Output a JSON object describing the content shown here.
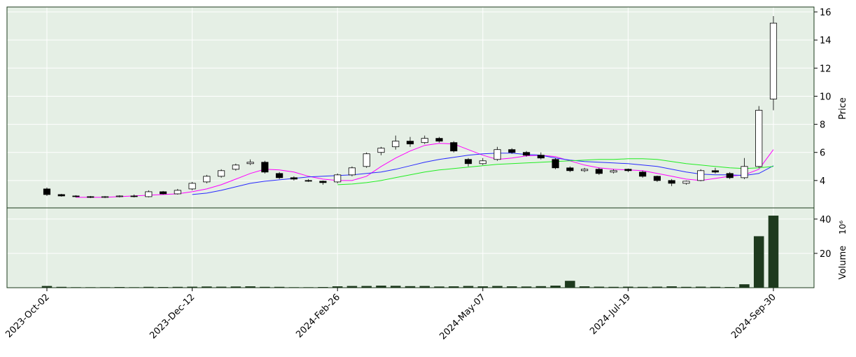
{
  "chart_data": {
    "type": "candlestick",
    "ylabel": "Price",
    "volume_label": "Volume",
    "volume_scale_label": "10⁶",
    "categories": [
      "2023-Oct-02",
      null,
      null,
      null,
      null,
      null,
      null,
      null,
      null,
      null,
      "2023-Dec-12",
      null,
      null,
      null,
      null,
      null,
      null,
      null,
      null,
      null,
      "2024-Feb-26",
      null,
      null,
      null,
      null,
      null,
      null,
      null,
      null,
      null,
      "2024-May-07",
      null,
      null,
      null,
      null,
      null,
      null,
      null,
      null,
      null,
      "2024-Jul-19",
      null,
      null,
      null,
      null,
      null,
      null,
      null,
      null,
      null,
      "2024-Sep-30"
    ],
    "open": [
      3.4,
      3.0,
      2.9,
      2.85,
      2.8,
      2.85,
      2.9,
      2.85,
      3.2,
      3.05,
      3.4,
      3.9,
      4.3,
      4.8,
      5.2,
      5.3,
      4.5,
      4.2,
      4.0,
      3.95,
      3.9,
      4.4,
      5.0,
      6.0,
      6.4,
      6.8,
      6.7,
      7.0,
      6.7,
      5.5,
      5.2,
      5.5,
      6.2,
      6.0,
      5.8,
      5.5,
      4.9,
      4.7,
      4.8,
      4.6,
      4.8,
      4.6,
      4.3,
      4.0,
      3.8,
      4.0,
      4.7,
      4.5,
      4.2,
      5.0,
      9.8
    ],
    "high": [
      3.5,
      3.05,
      2.95,
      2.9,
      2.9,
      2.95,
      3.0,
      3.3,
      3.25,
      3.4,
      3.9,
      4.4,
      4.8,
      5.2,
      5.5,
      5.4,
      4.6,
      4.3,
      4.1,
      4.0,
      4.5,
      5.0,
      6.0,
      6.4,
      7.2,
      7.1,
      7.2,
      7.1,
      6.8,
      5.6,
      5.6,
      6.4,
      6.3,
      6.1,
      6.0,
      5.6,
      5.0,
      4.9,
      4.9,
      4.8,
      4.85,
      4.7,
      4.35,
      4.1,
      4.0,
      4.8,
      4.9,
      4.6,
      5.6,
      9.3,
      15.7
    ],
    "low": [
      2.9,
      2.85,
      2.8,
      2.75,
      2.75,
      2.8,
      2.8,
      2.8,
      3.0,
      3.0,
      3.3,
      3.8,
      4.2,
      4.7,
      5.1,
      4.5,
      4.1,
      4.0,
      3.9,
      3.7,
      3.8,
      4.3,
      4.9,
      5.8,
      6.2,
      6.4,
      6.6,
      6.7,
      6.0,
      5.0,
      5.1,
      5.4,
      5.9,
      5.7,
      5.5,
      4.8,
      4.6,
      4.6,
      4.4,
      4.5,
      4.6,
      4.2,
      3.9,
      3.6,
      3.7,
      3.95,
      4.5,
      4.1,
      4.1,
      4.9,
      9.0
    ],
    "close": [
      3.0,
      2.9,
      2.85,
      2.8,
      2.85,
      2.9,
      2.85,
      3.2,
      3.05,
      3.3,
      3.8,
      4.3,
      4.7,
      5.1,
      5.3,
      4.6,
      4.2,
      4.1,
      3.95,
      3.85,
      4.4,
      4.9,
      5.9,
      6.3,
      6.8,
      6.6,
      7.0,
      6.8,
      6.1,
      5.2,
      5.4,
      6.2,
      6.0,
      5.8,
      5.6,
      4.9,
      4.7,
      4.8,
      4.5,
      4.7,
      4.7,
      4.3,
      4.0,
      3.8,
      3.95,
      4.7,
      4.6,
      4.2,
      5.0,
      9.0,
      15.2
    ],
    "volume": [
      1,
      0.5,
      0.3,
      0.3,
      0.3,
      0.4,
      0.3,
      0.5,
      0.4,
      0.5,
      0.6,
      0.7,
      0.6,
      0.7,
      0.8,
      0.5,
      0.5,
      0.3,
      0.3,
      0.4,
      0.8,
      1.0,
      1.0,
      1.2,
      1.1,
      0.9,
      1.0,
      0.7,
      0.8,
      1.0,
      0.8,
      1.0,
      0.8,
      0.7,
      0.9,
      1.2,
      4.0,
      0.8,
      0.6,
      0.5,
      0.6,
      0.5,
      0.6,
      0.8,
      0.5,
      0.6,
      0.5,
      0.4,
      2.0,
      30,
      42
    ],
    "volume_color": "#1e3a1e",
    "moving_averages": [
      {
        "color": "#ff00ff",
        "values": [
          null,
          null,
          2.8,
          2.8,
          2.8,
          2.85,
          2.9,
          2.95,
          3.0,
          3.05,
          3.2,
          3.4,
          3.7,
          4.1,
          4.5,
          4.8,
          4.75,
          4.6,
          4.3,
          4.1,
          4.0,
          4.0,
          4.3,
          5.0,
          5.6,
          6.1,
          6.5,
          6.65,
          6.6,
          6.2,
          5.8,
          5.5,
          5.6,
          5.75,
          5.8,
          5.7,
          5.4,
          5.1,
          4.9,
          4.8,
          4.75,
          4.7,
          4.5,
          4.3,
          4.1,
          4.0,
          4.15,
          4.3,
          4.4,
          4.8,
          6.2
        ]
      },
      {
        "color": "#2a2aff",
        "values": [
          null,
          null,
          null,
          null,
          null,
          null,
          null,
          null,
          null,
          null,
          3.0,
          3.1,
          3.3,
          3.55,
          3.8,
          3.95,
          4.05,
          4.15,
          4.25,
          4.3,
          4.35,
          4.4,
          4.5,
          4.6,
          4.8,
          5.05,
          5.3,
          5.5,
          5.65,
          5.8,
          5.9,
          5.95,
          5.95,
          5.85,
          5.8,
          5.6,
          5.45,
          5.35,
          5.3,
          5.25,
          5.2,
          5.1,
          5.0,
          4.8,
          4.6,
          4.45,
          4.4,
          4.4,
          4.35,
          4.5,
          5.05
        ]
      },
      {
        "color": "#22ee22",
        "values": [
          null,
          null,
          null,
          null,
          null,
          null,
          null,
          null,
          null,
          null,
          null,
          null,
          null,
          null,
          null,
          null,
          null,
          null,
          null,
          null,
          3.7,
          3.75,
          3.85,
          4.0,
          4.2,
          4.4,
          4.6,
          4.75,
          4.85,
          4.95,
          5.05,
          5.15,
          5.2,
          5.25,
          5.3,
          5.35,
          5.4,
          5.45,
          5.5,
          5.5,
          5.55,
          5.55,
          5.5,
          5.35,
          5.2,
          5.1,
          5.0,
          4.9,
          4.85,
          4.9,
          5.0
        ]
      }
    ],
    "ylim": [
      2.05,
      16.35
    ],
    "yticks": [
      4,
      6,
      8,
      10,
      12,
      14,
      16
    ],
    "volume_ylim": [
      0,
      46.5
    ],
    "volume_yticks": [
      20,
      40
    ],
    "grid": true,
    "background": "#e5efe5"
  }
}
